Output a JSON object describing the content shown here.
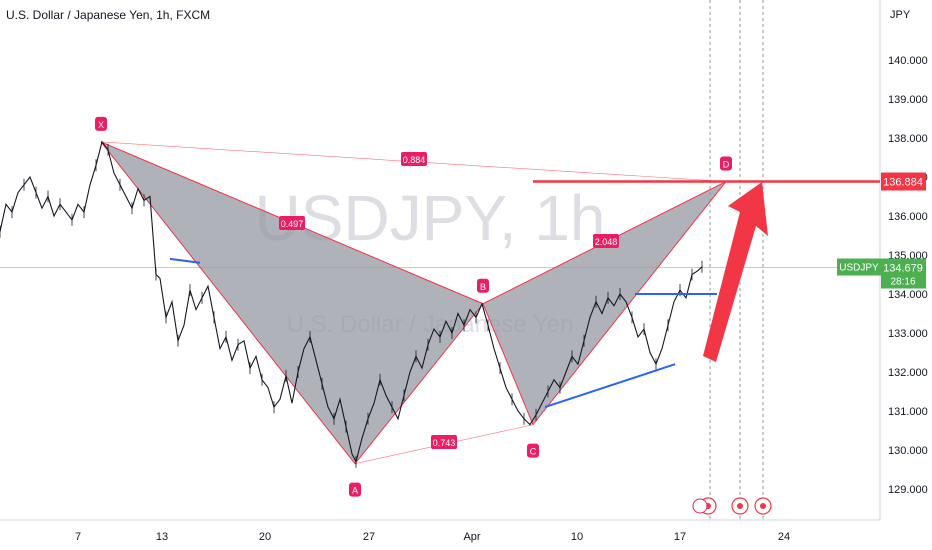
{
  "header": {
    "title": "U.S. Dollar / Japanese Yen, 1h, FXCM"
  },
  "watermark": {
    "main": "USDJPY, 1h",
    "sub": "U.S. Dollar / Japanese Yen"
  },
  "colors": {
    "pattern_fill": "#9598a1",
    "pattern_line": "#f23645",
    "label_bg": "#e91e63",
    "blue_line": "#2962ff",
    "resistance": "#f23645",
    "current_badge": "#4caf50",
    "candle": "#131722"
  },
  "chart_data": {
    "type": "line",
    "symbol": "USDJPY",
    "timeframe": "1h",
    "ylabel": "JPY",
    "ylim": [
      128.2,
      141.2
    ],
    "y_ticks": [
      "129.000",
      "130.000",
      "131.000",
      "132.000",
      "133.000",
      "134.000",
      "135.000",
      "136.000",
      "137.000",
      "138.000",
      "139.000",
      "140.000"
    ],
    "x_ticks": [
      "7",
      "13",
      "20",
      "27",
      "Apr",
      "10",
      "17",
      "24"
    ],
    "current_price": {
      "label": "USDJPY",
      "value": "134.679",
      "countdown": "28:16"
    },
    "resistance_level": "136.884",
    "harmonic_pattern": {
      "points": [
        {
          "name": "X",
          "date": "Mar 8",
          "price": 137.9
        },
        {
          "name": "A",
          "date": "Mar 24",
          "price": 129.65
        },
        {
          "name": "B",
          "date": "Mar 28",
          "price": 133.75
        },
        {
          "name": "C",
          "date": "Apr 5",
          "price": 130.65
        },
        {
          "name": "D",
          "date": "Apr 19",
          "price": 136.884
        }
      ],
      "ratios": {
        "XB": "0.497",
        "XD": "0.884",
        "AC": "0.743",
        "BD": "2.048"
      }
    },
    "price_path": [
      [
        0,
        135.6
      ],
      [
        6,
        136.3
      ],
      [
        12,
        136.1
      ],
      [
        18,
        136.6
      ],
      [
        24,
        136.8
      ],
      [
        30,
        137.0
      ],
      [
        36,
        136.6
      ],
      [
        42,
        136.2
      ],
      [
        48,
        136.5
      ],
      [
        54,
        136.0
      ],
      [
        60,
        136.3
      ],
      [
        66,
        136.1
      ],
      [
        72,
        135.9
      ],
      [
        78,
        136.3
      ],
      [
        84,
        136.1
      ],
      [
        90,
        136.8
      ],
      [
        96,
        137.3
      ],
      [
        102,
        137.9
      ],
      [
        108,
        137.7
      ],
      [
        114,
        137.1
      ],
      [
        120,
        136.8
      ],
      [
        126,
        136.5
      ],
      [
        132,
        136.2
      ],
      [
        138,
        136.7
      ],
      [
        144,
        136.4
      ],
      [
        150,
        136.5
      ],
      [
        156,
        134.5
      ],
      [
        160,
        134.4
      ],
      [
        166,
        133.4
      ],
      [
        172,
        133.8
      ],
      [
        178,
        132.8
      ],
      [
        184,
        133.2
      ],
      [
        190,
        134.1
      ],
      [
        196,
        133.6
      ],
      [
        202,
        133.9
      ],
      [
        208,
        134.2
      ],
      [
        214,
        133.4
      ],
      [
        220,
        132.6
      ],
      [
        226,
        132.9
      ],
      [
        232,
        132.3
      ],
      [
        238,
        132.7
      ],
      [
        244,
        132.8
      ],
      [
        250,
        132.1
      ],
      [
        256,
        132.4
      ],
      [
        262,
        131.8
      ],
      [
        268,
        131.6
      ],
      [
        274,
        131.1
      ],
      [
        280,
        131.3
      ],
      [
        286,
        131.9
      ],
      [
        292,
        131.2
      ],
      [
        298,
        132.0
      ],
      [
        304,
        132.6
      ],
      [
        310,
        132.9
      ],
      [
        316,
        132.3
      ],
      [
        322,
        131.7
      ],
      [
        328,
        131.1
      ],
      [
        334,
        130.8
      ],
      [
        340,
        131.3
      ],
      [
        346,
        130.6
      ],
      [
        352,
        129.9
      ],
      [
        356,
        129.7
      ],
      [
        362,
        130.3
      ],
      [
        368,
        130.8
      ],
      [
        374,
        131.2
      ],
      [
        380,
        131.8
      ],
      [
        386,
        131.4
      ],
      [
        392,
        131.1
      ],
      [
        398,
        130.8
      ],
      [
        404,
        131.4
      ],
      [
        410,
        132.0
      ],
      [
        416,
        132.4
      ],
      [
        422,
        132.1
      ],
      [
        428,
        132.7
      ],
      [
        434,
        133.1
      ],
      [
        440,
        132.9
      ],
      [
        446,
        133.3
      ],
      [
        452,
        133.0
      ],
      [
        458,
        133.5
      ],
      [
        464,
        133.2
      ],
      [
        470,
        133.6
      ],
      [
        476,
        133.4
      ],
      [
        482,
        133.75
      ],
      [
        488,
        133.2
      ],
      [
        494,
        132.6
      ],
      [
        500,
        132.1
      ],
      [
        506,
        131.6
      ],
      [
        512,
        131.3
      ],
      [
        518,
        131.0
      ],
      [
        524,
        130.8
      ],
      [
        530,
        130.65
      ],
      [
        536,
        130.9
      ],
      [
        542,
        131.2
      ],
      [
        548,
        131.5
      ],
      [
        554,
        131.8
      ],
      [
        560,
        131.6
      ],
      [
        566,
        132.0
      ],
      [
        572,
        132.4
      ],
      [
        578,
        132.2
      ],
      [
        584,
        132.8
      ],
      [
        590,
        133.4
      ],
      [
        596,
        133.8
      ],
      [
        602,
        133.5
      ],
      [
        608,
        133.9
      ],
      [
        614,
        133.7
      ],
      [
        620,
        134.0
      ],
      [
        626,
        133.8
      ],
      [
        632,
        133.4
      ],
      [
        638,
        132.9
      ],
      [
        644,
        133.1
      ],
      [
        650,
        132.5
      ],
      [
        656,
        132.2
      ],
      [
        662,
        132.6
      ],
      [
        668,
        133.2
      ],
      [
        674,
        133.8
      ],
      [
        680,
        134.1
      ],
      [
        686,
        133.9
      ],
      [
        692,
        134.5
      ],
      [
        698,
        134.6
      ],
      [
        702,
        134.7
      ]
    ]
  }
}
